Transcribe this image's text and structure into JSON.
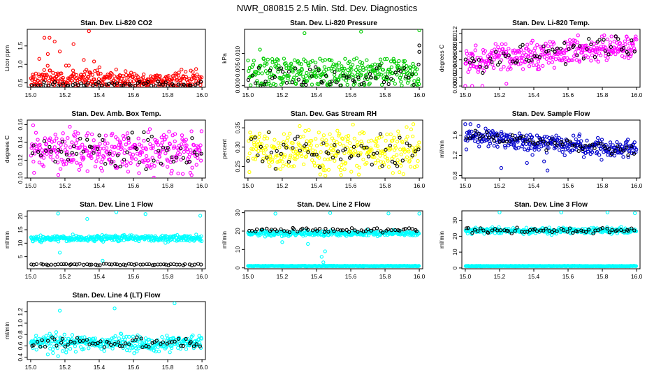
{
  "title": "NWR_080815  2.5 Min. Std. Dev. Diagnostics",
  "chart_data": [
    {
      "type": "scatter",
      "title": "Stan. Dev. Li-820 CO2",
      "ylabel": "Licor ppm",
      "ylim": [
        0.38,
        1.95
      ],
      "yticks": [
        0.5,
        1.0,
        1.5
      ],
      "ytick_labels": [
        "0.5",
        "1.0",
        "1.5"
      ],
      "xlim": [
        14.98,
        16.02
      ],
      "xticks": [
        15.0,
        15.2,
        15.4,
        15.6,
        15.8,
        16.0
      ],
      "xtick_labels": [
        "15.0",
        "15.2",
        "15.4",
        "15.6",
        "15.8",
        "16.0"
      ],
      "color": "#ff0000",
      "series": [
        {
          "name": "bulk",
          "min": 0.42,
          "typical": 0.6,
          "max": 1.0,
          "spread": 0.13,
          "outliers": [
            [
              15.08,
              1.72
            ],
            [
              15.11,
              1.72
            ],
            [
              15.14,
              1.62
            ],
            [
              15.25,
              1.55
            ],
            [
              15.34,
              1.9
            ],
            [
              15.17,
              1.35
            ],
            [
              15.1,
              1.28
            ],
            [
              15.31,
              1.12
            ],
            [
              15.37,
              1.08
            ],
            [
              15.05,
              1.15
            ]
          ]
        },
        {
          "name": "black",
          "color": "#000000",
          "min": 0.42,
          "typical": 0.45,
          "max": 0.55,
          "spread": 0.04
        }
      ]
    },
    {
      "type": "scatter",
      "title": "Stan. Dev. Li-820 Pressure",
      "ylabel": "kPa",
      "ylim": [
        -0.0005,
        0.0175
      ],
      "yticks": [
        0.0,
        0.005,
        0.01
      ],
      "ytick_labels": [
        "0.000",
        "0.005",
        "0.010"
      ],
      "xlim": [
        14.98,
        16.02
      ],
      "xticks": [
        15.0,
        15.2,
        15.4,
        15.6,
        15.8,
        16.0
      ],
      "xtick_labels": [
        "15.0",
        "15.2",
        "15.4",
        "15.6",
        "15.8",
        "16.0"
      ],
      "color": "#00cc00",
      "series": [
        {
          "name": "bulk",
          "min": 0.0,
          "typical": 0.004,
          "max": 0.0085,
          "spread": 0.0028,
          "outliers": [
            [
              15.07,
              0.0112
            ],
            [
              15.33,
              0.0163
            ],
            [
              15.66,
              0.0168
            ],
            [
              16.0,
              0.0172
            ]
          ]
        },
        {
          "name": "black",
          "color": "#000000",
          "min": 0.0,
          "typical": 0.0025,
          "max": 0.0075,
          "spread": 0.002,
          "outliers": [
            [
              16.0,
              0.0125
            ],
            [
              16.0,
              0.0105
            ]
          ]
        }
      ]
    },
    {
      "type": "scatter",
      "title": "Stan. Dev. Li-820 Temp.",
      "ylabel": "degrees C",
      "ylim": [
        -0.0003,
        0.013
      ],
      "yticks": [
        0.0,
        0.002,
        0.004,
        0.006,
        0.008,
        0.01,
        0.012
      ],
      "ytick_labels": [
        "0.000",
        "0.002",
        "0.004",
        "0.006",
        "0.008",
        "0.010",
        "0.012"
      ],
      "xlim": [
        14.98,
        16.02
      ],
      "xticks": [
        15.0,
        15.2,
        15.4,
        15.6,
        15.8,
        16.0
      ],
      "xtick_labels": [
        "15.0",
        "15.2",
        "15.4",
        "15.6",
        "15.8",
        "16.0"
      ],
      "color": "#ff00ff",
      "series": [
        {
          "name": "bulk",
          "min": 0.002,
          "typical_start": 0.0055,
          "typical_end": 0.0095,
          "max": 0.0125,
          "spread": 0.0015,
          "outliers": [
            [
              15.0,
              0.0
            ],
            [
              15.04,
              0.0
            ],
            [
              15.1,
              0.0
            ],
            [
              15.24,
              0.0005
            ]
          ]
        },
        {
          "name": "black",
          "color": "#000000",
          "min": 0.003,
          "typical_start": 0.0055,
          "typical_end": 0.0095,
          "max": 0.0115,
          "spread": 0.0012
        }
      ]
    },
    {
      "type": "scatter",
      "title": "Stan. Dev. Amb. Box Temp.",
      "ylabel": "degrees C",
      "ylim": [
        0.1,
        0.165
      ],
      "yticks": [
        0.1,
        0.12,
        0.14,
        0.16
      ],
      "ytick_labels": [
        "0.10",
        "0.12",
        "0.14",
        "0.16"
      ],
      "xlim": [
        14.98,
        16.02
      ],
      "xticks": [
        15.0,
        15.2,
        15.4,
        15.6,
        15.8,
        16.0
      ],
      "xtick_labels": [
        "15.0",
        "15.2",
        "15.4",
        "15.6",
        "15.8",
        "16.0"
      ],
      "color": "#ff00ff",
      "series": [
        {
          "name": "bulk",
          "min": 0.1,
          "typical": 0.13,
          "max": 0.162,
          "spread": 0.011
        },
        {
          "name": "black",
          "color": "#000000",
          "min": 0.105,
          "typical": 0.128,
          "max": 0.155,
          "spread": 0.01
        }
      ]
    },
    {
      "type": "scatter",
      "title": "Stan. Dev. Gas Stream RH",
      "ylabel": "percent",
      "ylim": [
        0.22,
        0.37
      ],
      "yticks": [
        0.25,
        0.3,
        0.35
      ],
      "ytick_labels": [
        "0.25",
        "0.30",
        "0.35"
      ],
      "xlim": [
        14.98,
        16.02
      ],
      "xticks": [
        15.0,
        15.2,
        15.4,
        15.6,
        15.8,
        16.0
      ],
      "xtick_labels": [
        "15.0",
        "15.2",
        "15.4",
        "15.6",
        "15.8",
        "16.0"
      ],
      "color": "#ffff00",
      "series": [
        {
          "name": "bulk",
          "min": 0.225,
          "typical": 0.29,
          "max": 0.365,
          "spread": 0.028
        },
        {
          "name": "black",
          "color": "#000000",
          "min": 0.24,
          "typical": 0.29,
          "max": 0.34,
          "spread": 0.025
        }
      ]
    },
    {
      "type": "scatter",
      "title": "Stan. Dev. Sample Flow",
      "ylabel": "ml/min",
      "ylim": [
        0.75,
        1.9
      ],
      "yticks": [
        0.8,
        1.2,
        1.6
      ],
      "ytick_labels": [
        "0.8",
        "1.2",
        "1.6"
      ],
      "xlim": [
        14.98,
        16.02
      ],
      "xticks": [
        15.0,
        15.2,
        15.4,
        15.6,
        15.8,
        16.0
      ],
      "xtick_labels": [
        "15.0",
        "15.2",
        "15.4",
        "15.6",
        "15.8",
        "16.0"
      ],
      "color": "#0000cc",
      "series": [
        {
          "name": "bulk",
          "min": 0.8,
          "typical_start": 1.58,
          "typical_end": 1.3,
          "max": 1.85,
          "spread": 0.09,
          "outliers": [
            [
              15.0,
              1.82
            ],
            [
              15.03,
              1.82
            ],
            [
              15.21,
              0.95
            ],
            [
              15.48,
              0.9
            ],
            [
              15.46,
              1.08
            ],
            [
              15.36,
              1.05
            ]
          ]
        },
        {
          "name": "black",
          "color": "#000000",
          "min": 1.1,
          "typical_start": 1.58,
          "typical_end": 1.3,
          "max": 1.7,
          "spread": 0.07
        }
      ]
    },
    {
      "type": "scatter",
      "title": "Stan. Dev. Line 1 Flow",
      "ylabel": "ml/min",
      "ylim": [
        0.5,
        22
      ],
      "yticks": [
        5,
        10,
        15,
        20
      ],
      "ytick_labels": [
        "5",
        "10",
        "15",
        "20"
      ],
      "xlim": [
        14.98,
        16.02
      ],
      "xticks": [
        15.0,
        15.2,
        15.4,
        15.6,
        15.8,
        16.0
      ],
      "xtick_labels": [
        "15.0",
        "15.2",
        "15.4",
        "15.6",
        "15.8",
        "16.0"
      ],
      "color": "#00ffff",
      "series": [
        {
          "name": "bulk",
          "min": 10,
          "typical": 11.8,
          "max": 13.5,
          "spread": 0.6,
          "outliers": [
            [
              15.16,
              21
            ],
            [
              15.5,
              21.5
            ],
            [
              15.67,
              20.8
            ],
            [
              15.99,
              20.2
            ],
            [
              15.33,
              19
            ],
            [
              15.17,
              6.5
            ],
            [
              15.42,
              3.5
            ]
          ]
        },
        {
          "name": "black",
          "color": "#000000",
          "min": 1.8,
          "typical": 2.1,
          "max": 2.5,
          "spread": 0.15
        }
      ]
    },
    {
      "type": "scatter",
      "title": "Stan. Dev. Line 2 Flow",
      "ylabel": "ml/min",
      "ylim": [
        -0.5,
        31
      ],
      "yticks": [
        0,
        10,
        20,
        30
      ],
      "ytick_labels": [
        "0",
        "10",
        "20",
        "30"
      ],
      "xlim": [
        14.98,
        16.02
      ],
      "xticks": [
        15.0,
        15.2,
        15.4,
        15.6,
        15.8,
        16.0
      ],
      "xtick_labels": [
        "15.0",
        "15.2",
        "15.4",
        "15.6",
        "15.8",
        "16.0"
      ],
      "color": "#00ffff",
      "series": [
        {
          "name": "upper",
          "min": 16,
          "typical": 18.8,
          "max": 21,
          "spread": 0.7,
          "outliers": [
            [
              15.16,
              29.5
            ],
            [
              15.48,
              29.8
            ],
            [
              15.82,
              29.6
            ],
            [
              16.0,
              29.5
            ],
            [
              15.43,
              6
            ],
            [
              15.44,
              3
            ],
            [
              15.45,
              9
            ],
            [
              15.2,
              14
            ],
            [
              15.35,
              13
            ]
          ]
        },
        {
          "name": "lower",
          "min": 0.6,
          "typical": 1.0,
          "max": 1.3,
          "spread": 0.08
        },
        {
          "name": "black",
          "color": "#000000",
          "min": 19,
          "typical": 20.5,
          "max": 22,
          "spread": 0.6
        }
      ]
    },
    {
      "type": "scatter",
      "title": "Stan. Dev. Line 3 Flow",
      "ylabel": "ml/min",
      "ylim": [
        -0.5,
        36
      ],
      "yticks": [
        0,
        10,
        20,
        30
      ],
      "ytick_labels": [
        "0",
        "10",
        "20",
        "30"
      ],
      "xlim": [
        14.98,
        16.02
      ],
      "xticks": [
        15.0,
        15.2,
        15.4,
        15.6,
        15.8,
        16.0
      ],
      "xtick_labels": [
        "15.0",
        "15.2",
        "15.4",
        "15.6",
        "15.8",
        "16.0"
      ],
      "color": "#00ffff",
      "series": [
        {
          "name": "upper",
          "min": 20,
          "typical": 23.5,
          "max": 26,
          "spread": 0.9,
          "outliers": [
            [
              15.2,
              35
            ],
            [
              15.56,
              35
            ],
            [
              15.83,
              35
            ],
            [
              15.99,
              34.5
            ]
          ]
        },
        {
          "name": "lower",
          "min": 0.8,
          "typical": 1.2,
          "max": 1.5,
          "spread": 0.08
        },
        {
          "name": "black",
          "color": "#000000",
          "min": 21,
          "typical": 23.5,
          "max": 26,
          "spread": 0.8
        }
      ]
    },
    {
      "type": "scatter",
      "title": "Stan. Dev. Line 4 (LT) Flow",
      "ylabel": "ml/min",
      "ylim": [
        0.36,
        1.38
      ],
      "yticks": [
        0.4,
        0.6,
        0.8,
        1.0,
        1.2
      ],
      "ytick_labels": [
        "0.4",
        "0.6",
        "0.8",
        "1.0",
        "1.2"
      ],
      "xlim": [
        14.98,
        16.02
      ],
      "xticks": [
        15.0,
        15.2,
        15.4,
        15.6,
        15.8,
        16.0
      ],
      "xtick_labels": [
        "15.0",
        "15.2",
        "15.4",
        "15.6",
        "15.8",
        "16.0"
      ],
      "color": "#00ffff",
      "series": [
        {
          "name": "bulk",
          "min": 0.45,
          "typical": 0.65,
          "max": 0.85,
          "spread": 0.07,
          "outliers": [
            [
              15.17,
              1.22
            ],
            [
              15.49,
              1.26
            ],
            [
              15.84,
              1.35
            ],
            [
              15.16,
              0.42
            ],
            [
              15.1,
              0.45
            ]
          ]
        },
        {
          "name": "black",
          "color": "#000000",
          "min": 0.5,
          "typical": 0.65,
          "max": 0.78,
          "spread": 0.05
        }
      ]
    }
  ]
}
